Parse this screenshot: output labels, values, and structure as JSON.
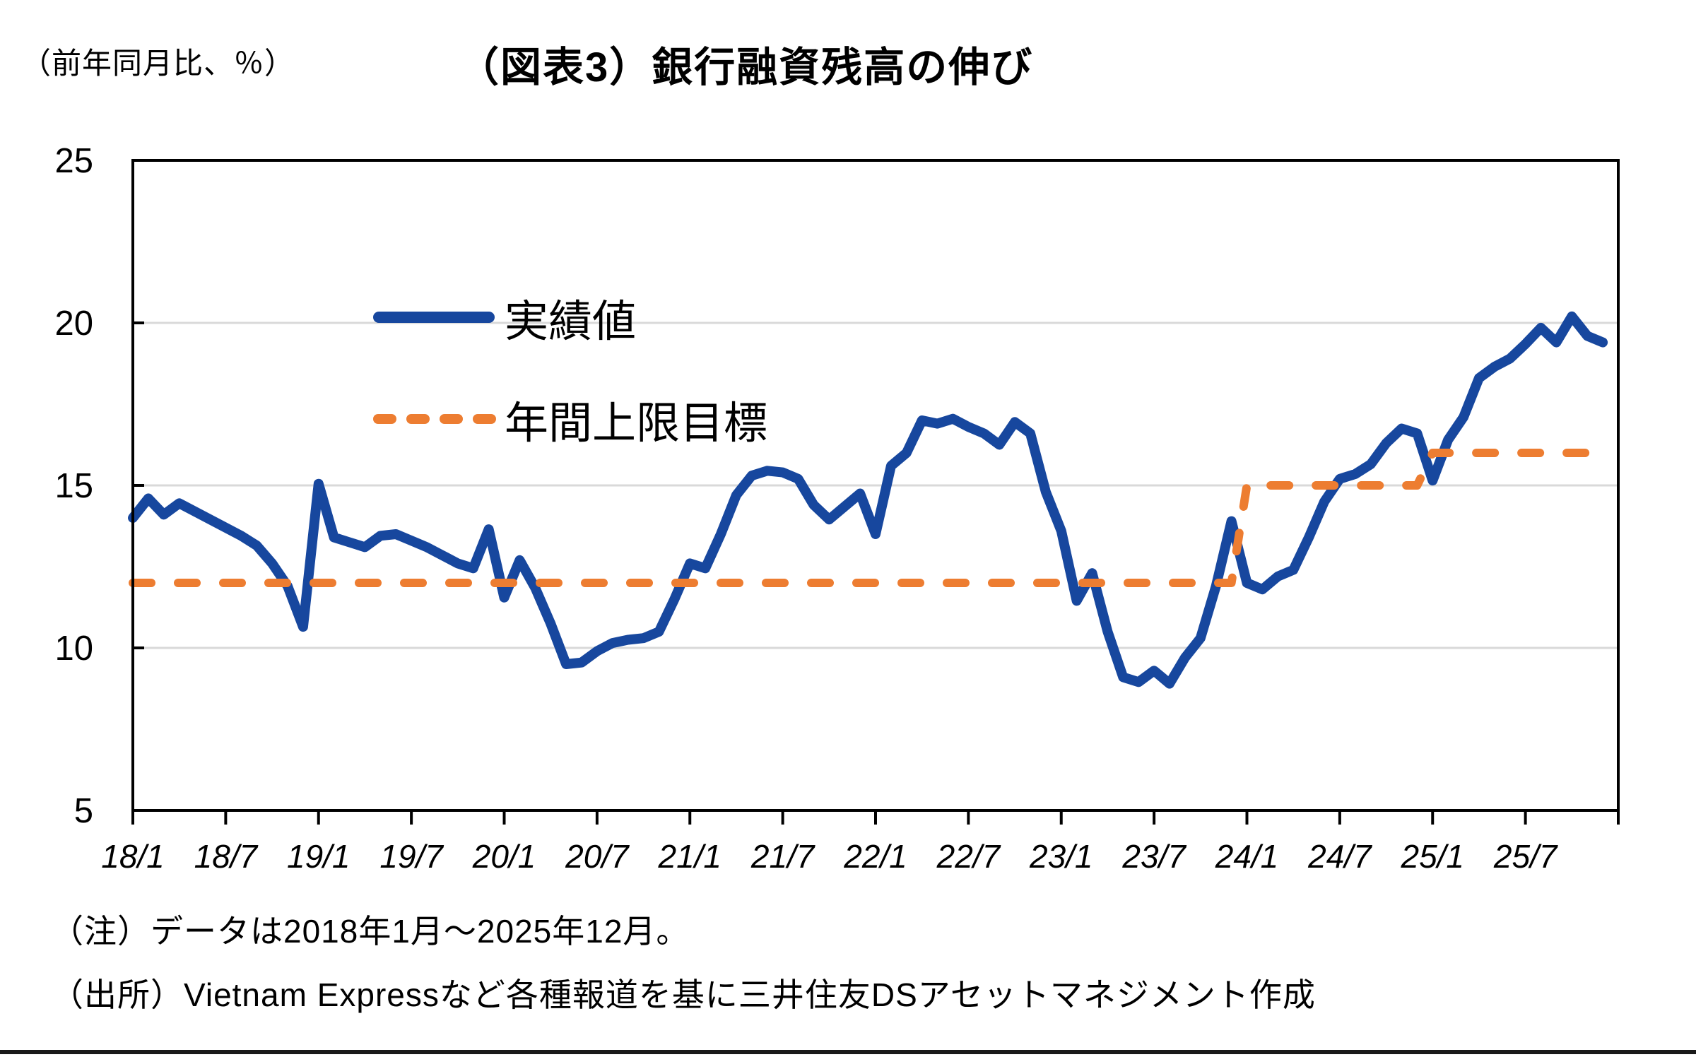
{
  "header": {
    "unit_label": "（前年同月比、％）",
    "title": "（図表3）銀行融資残高の伸び"
  },
  "legend": [
    {
      "label": "実績値",
      "style": "solid"
    },
    {
      "label": "年間上限目標",
      "style": "dashed"
    }
  ],
  "notes": {
    "note": "（注）データは2018年1月～2025年12月。",
    "source": "（出所）Vietnam Expressなど各種報道を基に三井住友DSアセットマネジメント作成"
  },
  "colors": {
    "actual": "#17479E",
    "target": "#ED7D31",
    "gridline": "#D9D9D9",
    "axis": "#000000"
  },
  "chart_data": {
    "type": "line",
    "title": "（図表3）銀行融資残高の伸び",
    "ylabel": "（前年同月比、％）",
    "x_start": "2018/1",
    "x_end": "2025/12",
    "x_frequency": "monthly",
    "x_tick_labels": [
      "18/1",
      "18/7",
      "19/1",
      "19/7",
      "20/1",
      "20/7",
      "21/1",
      "21/7",
      "22/1",
      "22/7",
      "23/1",
      "23/7",
      "24/1",
      "24/7",
      "25/1",
      "25/7"
    ],
    "yticks": [
      5,
      10,
      15,
      20,
      25
    ],
    "ylim": [
      5,
      25
    ],
    "grid": "horizontal",
    "legend_position": "inside-top-left",
    "series": [
      {
        "name": "実績値",
        "style": "solid",
        "color": "#17479E",
        "values": [
          14.0,
          14.6,
          14.1,
          14.45,
          14.2,
          13.95,
          13.7,
          13.45,
          13.15,
          12.6,
          11.9,
          10.65,
          15.05,
          13.4,
          13.25,
          13.1,
          13.45,
          13.5,
          13.3,
          13.1,
          12.85,
          12.6,
          12.45,
          13.65,
          11.55,
          12.7,
          11.85,
          10.75,
          9.5,
          9.55,
          9.9,
          10.15,
          10.25,
          10.3,
          10.5,
          11.5,
          12.6,
          12.45,
          13.5,
          14.7,
          15.3,
          15.45,
          15.4,
          15.2,
          14.4,
          13.95,
          14.35,
          14.75,
          13.5,
          15.6,
          16.0,
          17.0,
          16.9,
          17.05,
          16.8,
          16.6,
          16.25,
          16.95,
          16.6,
          14.8,
          13.6,
          11.45,
          12.3,
          10.5,
          9.1,
          8.95,
          9.3,
          8.9,
          9.7,
          10.3,
          11.9,
          13.9,
          12.0,
          11.8,
          12.2,
          12.4,
          13.4,
          14.5,
          15.2,
          15.35,
          15.65,
          16.3,
          16.75,
          16.6,
          15.15,
          16.4,
          17.1,
          18.3,
          18.65,
          18.9,
          19.35,
          19.85,
          19.4,
          20.2,
          19.6,
          19.4
        ]
      },
      {
        "name": "年間上限目標",
        "style": "dashed",
        "color": "#ED7D31",
        "levels": [
          {
            "period": "2018/1-2023/12",
            "value": 12.0
          },
          {
            "period": "2024/1-2024/12",
            "value": 15.0
          },
          {
            "period": "2025/1-2025/12",
            "value": 16.0
          }
        ],
        "values": [
          12,
          12,
          12,
          12,
          12,
          12,
          12,
          12,
          12,
          12,
          12,
          12,
          12,
          12,
          12,
          12,
          12,
          12,
          12,
          12,
          12,
          12,
          12,
          12,
          12,
          12,
          12,
          12,
          12,
          12,
          12,
          12,
          12,
          12,
          12,
          12,
          12,
          12,
          12,
          12,
          12,
          12,
          12,
          12,
          12,
          12,
          12,
          12,
          12,
          12,
          12,
          12,
          12,
          12,
          12,
          12,
          12,
          12,
          12,
          12,
          12,
          12,
          12,
          12,
          12,
          12,
          12,
          12,
          12,
          12,
          12,
          12,
          15,
          15,
          15,
          15,
          15,
          15,
          15,
          15,
          15,
          15,
          15,
          15,
          16,
          16,
          16,
          16,
          16,
          16,
          16,
          16,
          16,
          16,
          16,
          16
        ]
      }
    ]
  }
}
